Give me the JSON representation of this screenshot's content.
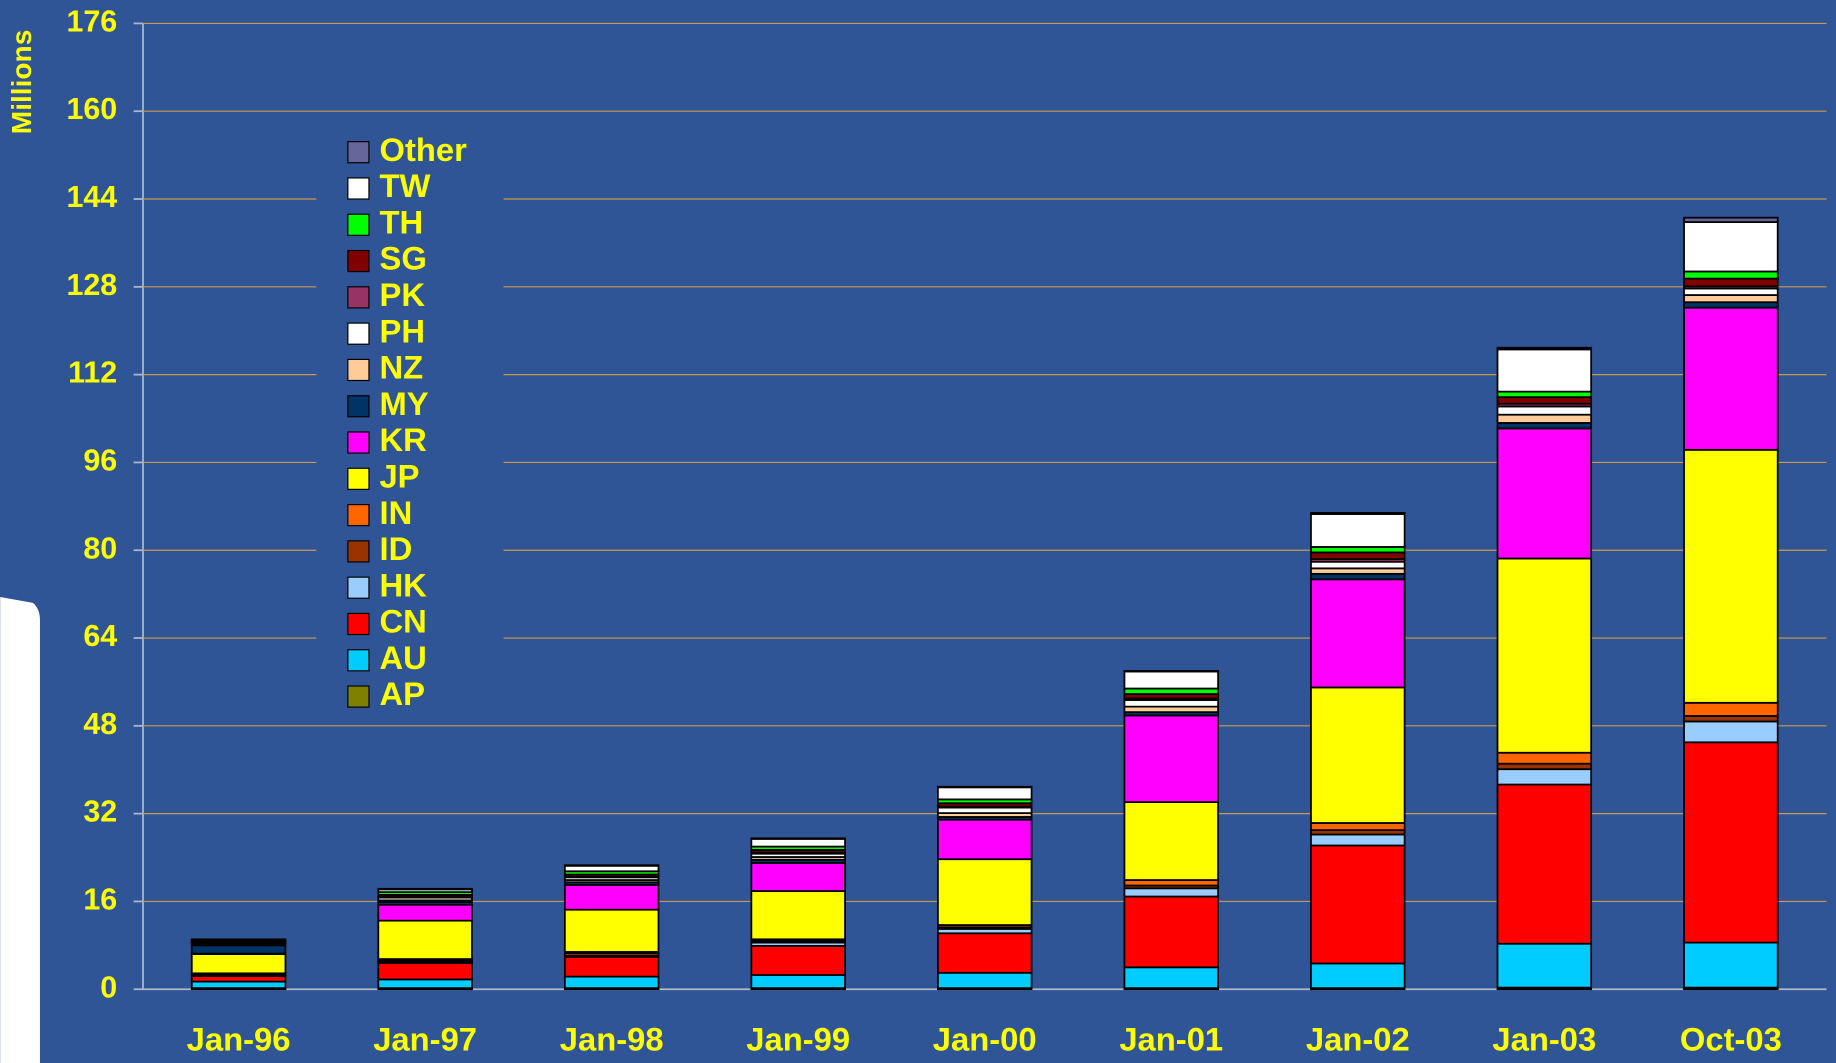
{
  "chart_data": {
    "type": "stacked_bar",
    "ylabel": "Millions",
    "categories": [
      "Jan-96",
      "Jan-97",
      "Jan-98",
      "Jan-99",
      "Jan-00",
      "Jan-01",
      "Jan-02",
      "Jan-03",
      "Oct-03"
    ],
    "ylim": [
      0,
      176
    ],
    "yticks": [
      0,
      16,
      32,
      48,
      64,
      80,
      96,
      112,
      128,
      144,
      160,
      176
    ],
    "grid": true,
    "legend": "upper left",
    "series": [
      {
        "name": "AP",
        "color": "#808000",
        "values": [
          0.2,
          0.2,
          0.2,
          0.2,
          0.2,
          0.2,
          0.2,
          0.3,
          0.3
        ]
      },
      {
        "name": "AU",
        "color": "#00ccff",
        "values": [
          1.2,
          1.6,
          2.1,
          2.4,
          2.8,
          3.8,
          4.5,
          8,
          8.2
        ]
      },
      {
        "name": "CN",
        "color": "#ff0000",
        "values": [
          1,
          3,
          3.6,
          5.3,
          7.2,
          12.9,
          21.5,
          29,
          36.5
        ]
      },
      {
        "name": "HK",
        "color": "#99ccff",
        "values": [
          0.2,
          0.2,
          0.2,
          0.6,
          0.8,
          1.5,
          2,
          2.8,
          3.8
        ]
      },
      {
        "name": "ID",
        "color": "#993300",
        "values": [
          0.1,
          0.2,
          0.5,
          0.3,
          0.3,
          0.5,
          0.8,
          1,
          1
        ]
      },
      {
        "name": "IN",
        "color": "#ff6600",
        "values": [
          0.2,
          0.3,
          0.2,
          0.3,
          0.4,
          1,
          1.3,
          2,
          2.4
        ]
      },
      {
        "name": "JP",
        "color": "#ffff00",
        "values": [
          3.5,
          7,
          7.7,
          8.8,
          12,
          14.2,
          24.7,
          35.4,
          46.1
        ]
      },
      {
        "name": "KR",
        "color": "#ff00ff",
        "values": [
          0.1,
          2.9,
          4.5,
          5.1,
          7.2,
          15.8,
          19.7,
          23.7,
          25.9
        ]
      },
      {
        "name": "MY",
        "color": "#003366",
        "values": [
          1.5,
          0.5,
          0.5,
          0.6,
          0.5,
          0.6,
          1,
          1,
          1
        ]
      },
      {
        "name": "NZ",
        "color": "#ffcc99",
        "values": [
          0.1,
          0.3,
          0.4,
          0.5,
          0.7,
          1,
          1,
          1.5,
          1.3
        ]
      },
      {
        "name": "PH",
        "color": "#ffffff",
        "values": [
          0.3,
          0.5,
          0.5,
          0.6,
          1,
          1.2,
          1.2,
          1.5,
          1.2
        ]
      },
      {
        "name": "PK",
        "color": "#993366",
        "values": [
          0.1,
          0.1,
          0.1,
          0.2,
          0.2,
          0.3,
          0.5,
          0.5,
          0.4
        ]
      },
      {
        "name": "SG",
        "color": "#800000",
        "values": [
          0.2,
          0.4,
          0.4,
          0.5,
          0.6,
          0.8,
          1.2,
          1.2,
          1.4
        ]
      },
      {
        "name": "TH",
        "color": "#00ff00",
        "values": [
          0.1,
          0.5,
          0.6,
          0.6,
          0.7,
          1,
          1,
          1,
          1.3
        ]
      },
      {
        "name": "TW",
        "color": "#ffffff",
        "values": [
          0.2,
          0.5,
          1,
          1.4,
          2.2,
          3.1,
          6,
          7.7,
          9
        ]
      },
      {
        "name": "Other",
        "color": "#666699",
        "values": [
          0.1,
          0.1,
          0.1,
          0.1,
          0.1,
          0.1,
          0.2,
          0.3,
          0.8
        ]
      }
    ]
  }
}
